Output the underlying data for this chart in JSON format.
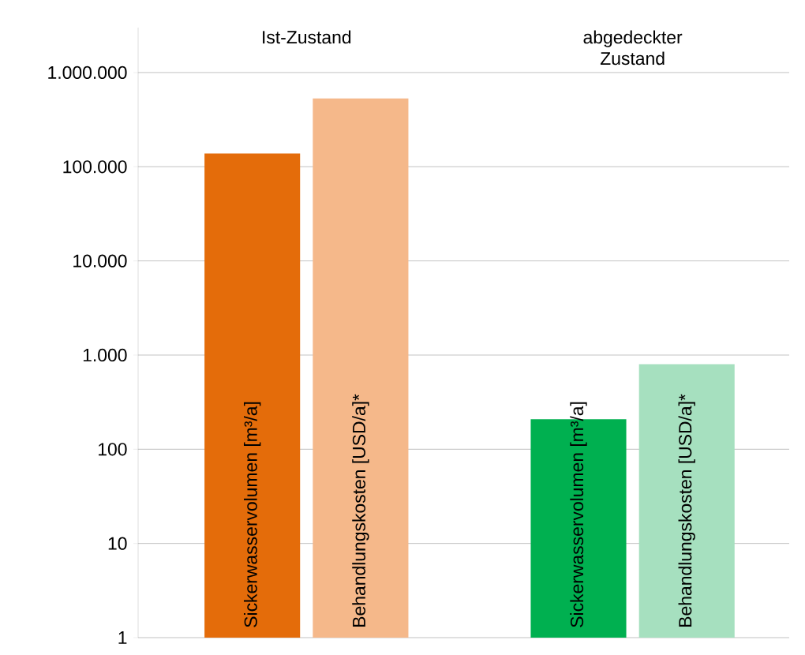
{
  "chart_data": {
    "type": "bar",
    "log": "y",
    "grid": "y",
    "categories": [
      "Ist-Zustand",
      "abgedeckter Zustand"
    ],
    "series": [
      {
        "name": "Sickerwasservolumen [m³/a]",
        "colors": [
          "#e46c0a",
          "#00b050"
        ],
        "values": [
          138000,
          208
        ]
      },
      {
        "name": "Behandlungskosten [USD/a]*",
        "colors": [
          "#f5b88a",
          "#a6e0bf"
        ],
        "values": [
          530000,
          800
        ]
      }
    ],
    "ylim": [
      1,
      3000000
    ],
    "yticks": [
      1,
      10,
      100,
      {
        "value": 1000,
        "label": "1.000"
      },
      {
        "value": 10000,
        "label": "10.000"
      },
      {
        "value": 100000,
        "label": "100.000"
      },
      {
        "value": 1000000,
        "label": "1.000.000"
      }
    ]
  }
}
